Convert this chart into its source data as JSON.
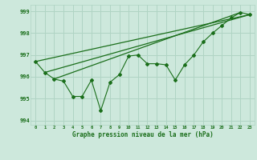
{
  "xlabel": "Graphe pression niveau de la mer (hPa)",
  "ylim": [
    993.8,
    999.3
  ],
  "xlim": [
    -0.5,
    23.5
  ],
  "yticks": [
    994,
    995,
    996,
    997,
    998,
    999
  ],
  "xticks": [
    0,
    1,
    2,
    3,
    4,
    5,
    6,
    7,
    8,
    9,
    10,
    11,
    12,
    13,
    14,
    15,
    16,
    17,
    18,
    19,
    20,
    21,
    22,
    23
  ],
  "background_color": "#cde8dc",
  "grid_color": "#b0d4c4",
  "line_color": "#1a6e1a",
  "main_line": [
    996.7,
    996.2,
    995.9,
    995.8,
    995.1,
    995.1,
    995.85,
    994.45,
    995.75,
    996.1,
    996.95,
    997.0,
    996.6,
    996.6,
    996.55,
    995.85,
    996.55,
    997.0,
    997.6,
    998.0,
    998.35,
    998.7,
    998.95,
    998.85
  ],
  "trend_line1": [
    [
      0,
      996.7
    ],
    [
      23,
      998.85
    ]
  ],
  "trend_line2": [
    [
      1,
      996.2
    ],
    [
      23,
      998.85
    ]
  ],
  "trend_line3": [
    [
      2,
      995.9
    ],
    [
      22,
      998.95
    ]
  ]
}
